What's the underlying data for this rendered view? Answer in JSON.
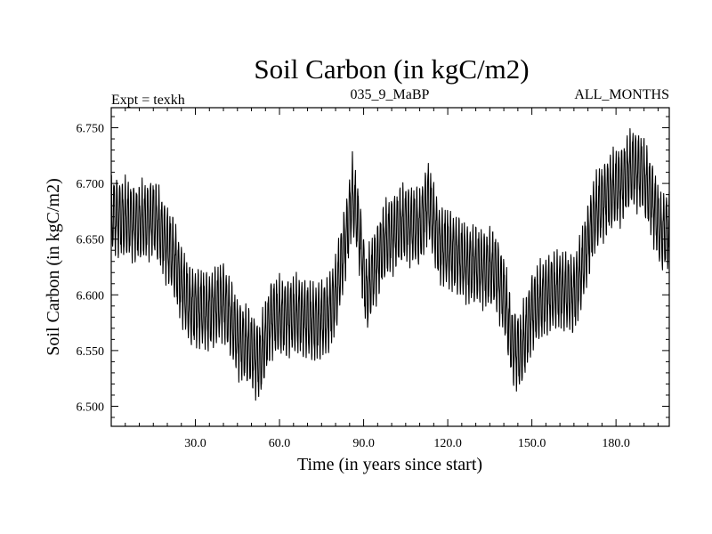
{
  "chart_data": {
    "type": "line",
    "title": "Soil Carbon (in kgC/m2)",
    "subtitle_left": "Expt = texkh",
    "subtitle_center": "035_9_MaBP",
    "subtitle_right": "ALL_MONTHS",
    "xlabel": "Time (in years since start)",
    "ylabel": "Soil Carbon (in kgC/m2)",
    "xlim": [
      0,
      199
    ],
    "ylim": [
      6.482,
      6.768
    ],
    "x_ticks": [
      30,
      60,
      90,
      120,
      150,
      180
    ],
    "x_tick_labels": [
      "30.0",
      "60.0",
      "90.0",
      "120.0",
      "150.0",
      "180.0"
    ],
    "y_ticks": [
      6.5,
      6.55,
      6.6,
      6.65,
      6.7,
      6.75
    ],
    "y_tick_labels": [
      "6.500",
      "6.550",
      "6.600",
      "6.650",
      "6.700",
      "6.750"
    ],
    "seasonal_amplitude": 0.03,
    "series": [
      {
        "name": "Soil Carbon",
        "color": "#000000",
        "trend_x": [
          0,
          5,
          10,
          15,
          18,
          22,
          25,
          28,
          35,
          40,
          45,
          50,
          53,
          57,
          62,
          67,
          72,
          77,
          80,
          84,
          86,
          88,
          91,
          94,
          97,
          100,
          105,
          110,
          113,
          117,
          121,
          127,
          132,
          137,
          140,
          143,
          146,
          150,
          155,
          160,
          165,
          168,
          172,
          177,
          182,
          186,
          189,
          193,
          196,
          199
        ],
        "trend_y": [
          6.672,
          6.668,
          6.664,
          6.67,
          6.655,
          6.635,
          6.61,
          6.59,
          6.585,
          6.595,
          6.562,
          6.55,
          6.54,
          6.58,
          6.58,
          6.582,
          6.575,
          6.58,
          6.6,
          6.655,
          6.69,
          6.665,
          6.6,
          6.625,
          6.645,
          6.655,
          6.665,
          6.66,
          6.685,
          6.645,
          6.64,
          6.628,
          6.625,
          6.622,
          6.6,
          6.555,
          6.548,
          6.585,
          6.6,
          6.605,
          6.6,
          6.625,
          6.67,
          6.69,
          6.7,
          6.715,
          6.71,
          6.685,
          6.655,
          6.66
        ]
      }
    ]
  }
}
